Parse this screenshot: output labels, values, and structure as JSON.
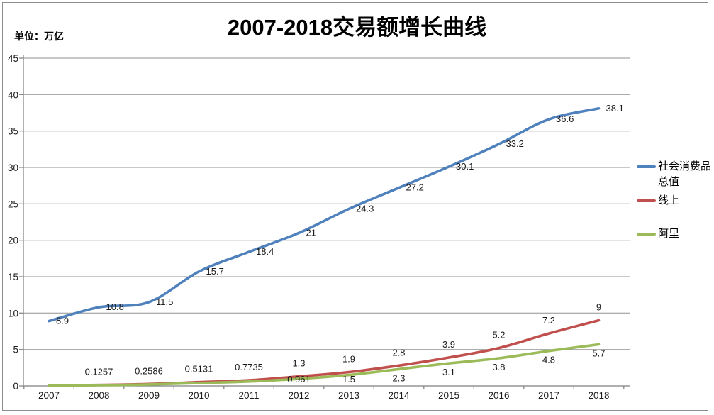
{
  "chart_data": {
    "type": "line",
    "title": "2007-2018交易额增长曲线",
    "unit_label": "单位：万亿",
    "smoothed": true,
    "grid": true,
    "legend_position": "right",
    "categories": [
      "2007",
      "2008",
      "2009",
      "2010",
      "2011",
      "2012",
      "2013",
      "2014",
      "2015",
      "2016",
      "2017",
      "2018"
    ],
    "y_axis": {
      "min": 0,
      "max": 45,
      "step": 5,
      "tick_labels": [
        "0",
        "5",
        "10",
        "15",
        "20",
        "25",
        "30",
        "35",
        "40",
        "45"
      ]
    },
    "series": [
      {
        "name": "社会消费品总值",
        "color": "#4F81BD",
        "label_position": "right",
        "values": [
          8.9,
          10.8,
          11.5,
          15.7,
          18.4,
          21,
          24.3,
          27.2,
          30.1,
          33.2,
          36.6,
          38.1
        ],
        "point_labels": [
          "8.9",
          "10.8",
          "11.5",
          "15.7",
          "18.4",
          "21",
          "24.3",
          "27.2",
          "30.1",
          "33.2",
          "36.6",
          "38.1"
        ]
      },
      {
        "name": "线上",
        "color": "#C0504D",
        "label_position": "above",
        "values": [
          0.06,
          0.1257,
          0.2586,
          0.5131,
          0.7735,
          1.3,
          1.9,
          2.8,
          3.9,
          5.2,
          7.2,
          9
        ],
        "point_labels": [
          "",
          "0.1257",
          "0.2586",
          "0.5131",
          "0.7735",
          "1.3",
          "1.9",
          "2.8",
          "3.9",
          "5.2",
          "7.2",
          "9"
        ]
      },
      {
        "name": "阿里",
        "color": "#9BBB59",
        "label_position": "below",
        "values": [
          0.03,
          0.1,
          0.2,
          0.4,
          0.6,
          0.961,
          1.5,
          2.3,
          3.1,
          3.8,
          4.8,
          5.7
        ],
        "point_labels": [
          "",
          "",
          "",
          "",
          "",
          "0.961",
          "1.5",
          "2.3",
          "3.1",
          "3.8",
          "4.8",
          "5.7"
        ]
      }
    ]
  },
  "colors": {
    "background": "#FFFFFF",
    "border": "#8C8C8C",
    "gridline": "#919191",
    "axis": "#7F7F7F",
    "label_text": "#1A1A1A"
  }
}
